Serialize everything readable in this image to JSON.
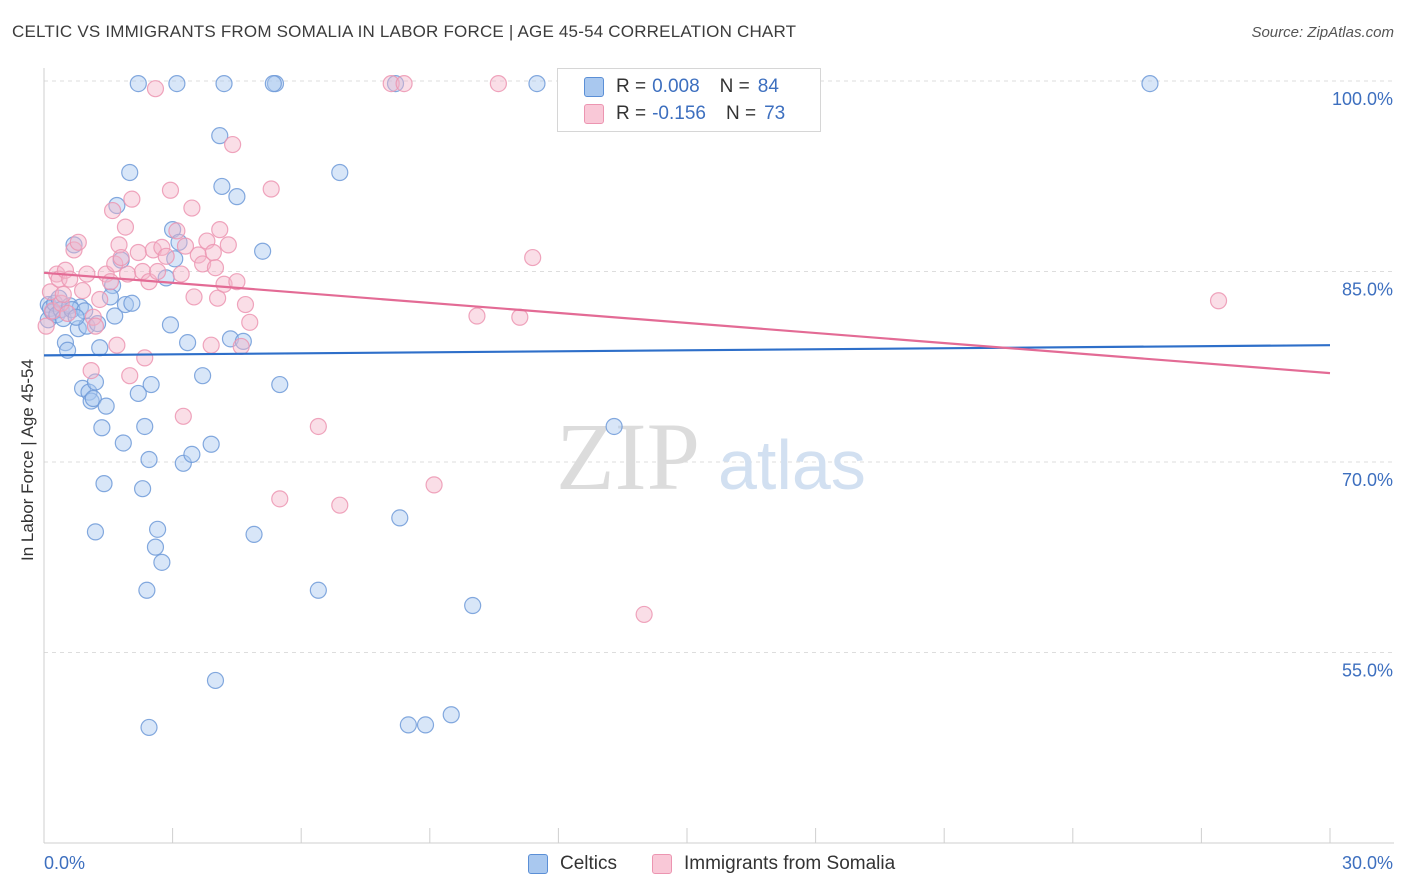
{
  "title": "CELTIC VS IMMIGRANTS FROM SOMALIA IN LABOR FORCE | AGE 45-54 CORRELATION CHART",
  "source": "Source: ZipAtlas.com",
  "watermark": {
    "zip": "ZIP",
    "atlas": "atlas"
  },
  "colors": {
    "blue": "#2e6fc9",
    "pink": "#e36b95",
    "blue_fill": "#a9c8ef",
    "pink_fill": "#f4b6ca",
    "grid": "#dddddd",
    "tick_label": "#3d6fbf"
  },
  "legend_top": [
    {
      "r_label": "R =",
      "r_value": "0.008",
      "n_label": "N =",
      "n_value": "84"
    },
    {
      "r_label": "R =",
      "r_value": "-0.156",
      "n_label": "N =",
      "n_value": "73"
    }
  ],
  "legend_bottom": [
    {
      "label": "Celtics"
    },
    {
      "label": "Immigrants from Somalia"
    }
  ],
  "chart_data": {
    "type": "scatter",
    "title": "CELTIC VS IMMIGRANTS FROM SOMALIA IN LABOR FORCE | AGE 45-54 CORRELATION CHART",
    "xlabel": "",
    "ylabel": "In Labor Force | Age 45-54",
    "xlim": [
      0,
      30
    ],
    "ylim": [
      40,
      101.5
    ],
    "x_tick_labels": [
      {
        "value": 0,
        "label": "0.0%"
      },
      {
        "value": 30,
        "label": "30.0%"
      }
    ],
    "y_ticks": [
      {
        "value": 100,
        "label": "100.0%"
      },
      {
        "value": 85,
        "label": "85.0%"
      },
      {
        "value": 70,
        "label": "70.0%"
      },
      {
        "value": 55,
        "label": "55.0%"
      }
    ],
    "series": [
      {
        "name": "Celtics",
        "color": "#2e6fc9",
        "trend": {
          "x": [
            0,
            30
          ],
          "y": [
            78.4,
            79.2
          ]
        },
        "points": [
          [
            0.1,
            81.2
          ],
          [
            0.1,
            82.4
          ],
          [
            0.15,
            82.1
          ],
          [
            0.2,
            81.8
          ],
          [
            0.25,
            82.5
          ],
          [
            0.3,
            81.6
          ],
          [
            0.35,
            82.9
          ],
          [
            0.4,
            82.0
          ],
          [
            0.45,
            81.3
          ],
          [
            0.5,
            79.4
          ],
          [
            0.55,
            78.8
          ],
          [
            0.6,
            82.3
          ],
          [
            0.7,
            87.1
          ],
          [
            0.8,
            80.5
          ],
          [
            0.85,
            82.2
          ],
          [
            0.9,
            75.8
          ],
          [
            1.0,
            80.7
          ],
          [
            1.05,
            75.5
          ],
          [
            1.1,
            74.8
          ],
          [
            1.15,
            75.0
          ],
          [
            1.2,
            76.3
          ],
          [
            1.3,
            79.0
          ],
          [
            1.35,
            72.7
          ],
          [
            1.4,
            68.3
          ],
          [
            1.45,
            74.4
          ],
          [
            1.6,
            83.9
          ],
          [
            1.65,
            81.5
          ],
          [
            1.7,
            90.2
          ],
          [
            1.8,
            85.9
          ],
          [
            1.85,
            71.5
          ],
          [
            1.9,
            82.4
          ],
          [
            2.0,
            92.8
          ],
          [
            2.05,
            82.5
          ],
          [
            2.2,
            75.4
          ],
          [
            2.3,
            67.9
          ],
          [
            2.35,
            72.8
          ],
          [
            2.4,
            59.9
          ],
          [
            2.45,
            70.2
          ],
          [
            2.5,
            76.1
          ],
          [
            2.6,
            63.3
          ],
          [
            2.65,
            64.7
          ],
          [
            2.75,
            62.1
          ],
          [
            2.85,
            84.5
          ],
          [
            2.95,
            80.8
          ],
          [
            3.0,
            88.3
          ],
          [
            3.05,
            86.0
          ],
          [
            3.15,
            87.3
          ],
          [
            3.25,
            69.9
          ],
          [
            3.35,
            79.4
          ],
          [
            3.45,
            70.6
          ],
          [
            3.7,
            76.8
          ],
          [
            3.9,
            71.4
          ],
          [
            4.0,
            52.8
          ],
          [
            4.1,
            95.7
          ],
          [
            4.15,
            91.7
          ],
          [
            4.35,
            79.7
          ],
          [
            4.5,
            90.9
          ],
          [
            4.65,
            79.5
          ],
          [
            4.9,
            64.3
          ],
          [
            5.1,
            86.6
          ],
          [
            5.4,
            99.8
          ],
          [
            5.5,
            76.1
          ],
          [
            6.4,
            59.9
          ],
          [
            6.9,
            92.8
          ],
          [
            8.2,
            99.8
          ],
          [
            8.3,
            65.6
          ],
          [
            8.5,
            49.3
          ],
          [
            8.9,
            49.3
          ],
          [
            9.5,
            50.1
          ],
          [
            10.0,
            58.7
          ],
          [
            11.5,
            99.8
          ],
          [
            13.3,
            72.8
          ],
          [
            25.8,
            99.8
          ],
          [
            2.2,
            99.8
          ],
          [
            3.1,
            99.8
          ],
          [
            4.2,
            99.8
          ],
          [
            5.35,
            99.8
          ],
          [
            2.45,
            49.1
          ],
          [
            1.2,
            64.5
          ],
          [
            0.65,
            82.0
          ],
          [
            0.95,
            81.9
          ],
          [
            1.55,
            83.0
          ],
          [
            1.25,
            80.9
          ],
          [
            0.75,
            81.4
          ]
        ]
      },
      {
        "name": "Immigrants from Somalia",
        "color": "#e36b95",
        "trend": {
          "x": [
            0,
            30
          ],
          "y": [
            84.9,
            77.0
          ]
        },
        "points": [
          [
            0.05,
            80.7
          ],
          [
            0.15,
            83.4
          ],
          [
            0.2,
            81.9
          ],
          [
            0.3,
            84.8
          ],
          [
            0.35,
            84.4
          ],
          [
            0.4,
            82.5
          ],
          [
            0.45,
            83.2
          ],
          [
            0.5,
            85.1
          ],
          [
            0.55,
            81.7
          ],
          [
            0.6,
            84.4
          ],
          [
            0.7,
            86.7
          ],
          [
            0.8,
            87.3
          ],
          [
            0.9,
            83.5
          ],
          [
            1.0,
            84.8
          ],
          [
            1.1,
            77.2
          ],
          [
            1.15,
            81.4
          ],
          [
            1.2,
            80.7
          ],
          [
            1.3,
            82.8
          ],
          [
            1.45,
            84.8
          ],
          [
            1.55,
            84.2
          ],
          [
            1.6,
            89.8
          ],
          [
            1.65,
            85.6
          ],
          [
            1.7,
            79.2
          ],
          [
            1.75,
            87.1
          ],
          [
            1.8,
            86.1
          ],
          [
            1.9,
            88.5
          ],
          [
            1.95,
            84.8
          ],
          [
            2.0,
            76.8
          ],
          [
            2.05,
            90.7
          ],
          [
            2.2,
            86.5
          ],
          [
            2.3,
            85.0
          ],
          [
            2.35,
            78.2
          ],
          [
            2.45,
            84.2
          ],
          [
            2.55,
            86.7
          ],
          [
            2.65,
            85.0
          ],
          [
            2.75,
            86.9
          ],
          [
            2.85,
            86.2
          ],
          [
            2.95,
            91.4
          ],
          [
            3.1,
            88.2
          ],
          [
            3.2,
            84.8
          ],
          [
            3.25,
            73.6
          ],
          [
            3.3,
            87.0
          ],
          [
            3.45,
            90.0
          ],
          [
            3.5,
            83.0
          ],
          [
            3.6,
            86.3
          ],
          [
            3.7,
            85.6
          ],
          [
            3.8,
            87.4
          ],
          [
            3.9,
            79.2
          ],
          [
            3.95,
            86.5
          ],
          [
            4.0,
            85.3
          ],
          [
            4.05,
            82.9
          ],
          [
            4.1,
            88.3
          ],
          [
            4.2,
            84.0
          ],
          [
            4.3,
            87.1
          ],
          [
            4.4,
            95.0
          ],
          [
            4.5,
            84.2
          ],
          [
            4.6,
            79.1
          ],
          [
            4.7,
            82.4
          ],
          [
            4.8,
            81.0
          ],
          [
            5.3,
            91.5
          ],
          [
            5.5,
            67.1
          ],
          [
            6.4,
            72.8
          ],
          [
            6.9,
            66.6
          ],
          [
            8.1,
            99.8
          ],
          [
            8.4,
            99.8
          ],
          [
            9.1,
            68.2
          ],
          [
            10.1,
            81.5
          ],
          [
            10.6,
            99.8
          ],
          [
            11.1,
            81.4
          ],
          [
            11.4,
            86.1
          ],
          [
            14.0,
            58.0
          ],
          [
            27.4,
            82.7
          ],
          [
            2.6,
            99.4
          ]
        ]
      }
    ]
  }
}
